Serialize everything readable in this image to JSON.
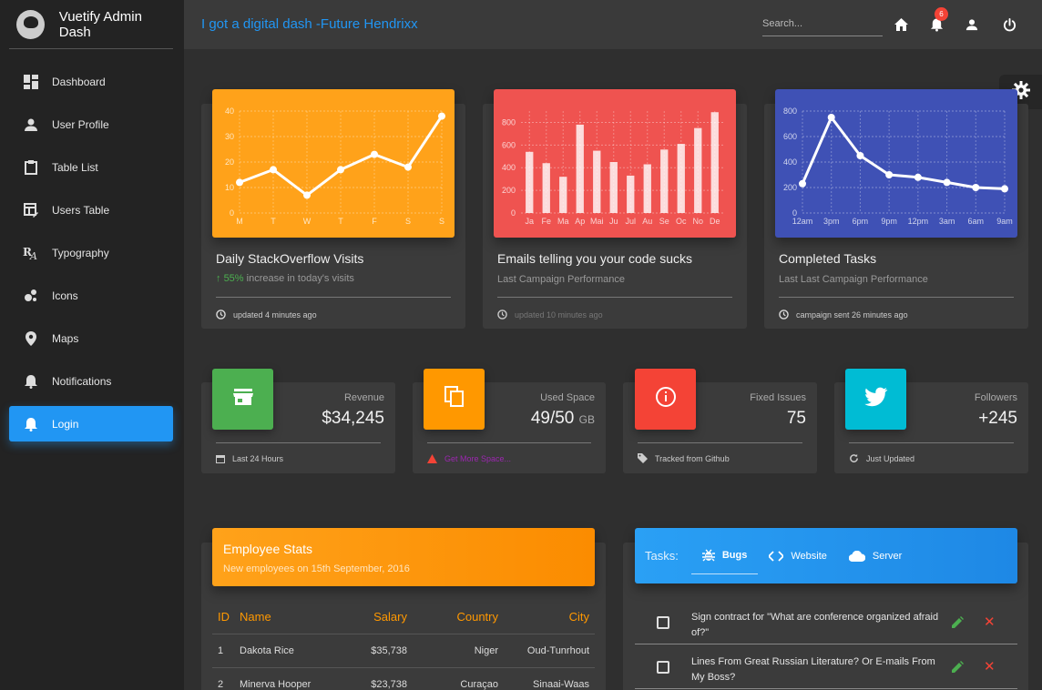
{
  "brand": {
    "title": "Vuetify Admin Dash"
  },
  "nav": [
    {
      "label": "Dashboard",
      "icon": "dashboard-icon"
    },
    {
      "label": "User Profile",
      "icon": "person-icon"
    },
    {
      "label": "Table List",
      "icon": "clipboard-icon"
    },
    {
      "label": "Users Table",
      "icon": "table-edit-icon"
    },
    {
      "label": "Typography",
      "icon": "typography-icon"
    },
    {
      "label": "Icons",
      "icon": "bubble-chart-icon"
    },
    {
      "label": "Maps",
      "icon": "map-marker-icon"
    },
    {
      "label": "Notifications",
      "icon": "bell-icon"
    },
    {
      "label": "Login",
      "icon": "bell-icon",
      "active": true
    }
  ],
  "topbar": {
    "tagline": "I got a digital dash -Future Hendrixx",
    "search_placeholder": "Search...",
    "notification_count": "6"
  },
  "chart_cards": [
    {
      "title": "Daily StackOverflow Visits",
      "subtitle_pct": "55%",
      "subtitle_text": "increase in today's visits",
      "footer": "updated 4 minutes ago",
      "color": "#ffa21a"
    },
    {
      "title": "Emails telling you your code sucks",
      "subtitle_text": "Last Campaign Performance",
      "footer": "updated 10 minutes ago",
      "color": "#ef5350"
    },
    {
      "title": "Completed Tasks",
      "subtitle_text": "Last Last Campaign Performance",
      "footer": "campaign sent 26 minutes ago",
      "color": "#3f51b5"
    }
  ],
  "chart_data": [
    {
      "type": "line",
      "categories": [
        "M",
        "T",
        "W",
        "T",
        "F",
        "S",
        "S"
      ],
      "values": [
        12,
        17,
        7,
        17,
        23,
        18,
        38
      ],
      "yticks": [
        0,
        10,
        20,
        30,
        40
      ],
      "ylim": [
        0,
        40
      ],
      "grid": true
    },
    {
      "type": "bar",
      "categories": [
        "Ja",
        "Fe",
        "Ma",
        "Ap",
        "Mai",
        "Ju",
        "Jul",
        "Au",
        "Se",
        "Oc",
        "No",
        "De"
      ],
      "values": [
        540,
        440,
        320,
        780,
        550,
        450,
        330,
        430,
        560,
        610,
        750,
        890
      ],
      "yticks": [
        0,
        200,
        400,
        600,
        800
      ],
      "ylim": [
        0,
        900
      ],
      "grid": true
    },
    {
      "type": "line",
      "categories": [
        "12am",
        "3pm",
        "6pm",
        "9pm",
        "12pm",
        "3am",
        "6am",
        "9am"
      ],
      "values": [
        230,
        750,
        450,
        300,
        280,
        240,
        200,
        190
      ],
      "yticks": [
        0,
        200,
        400,
        600,
        800
      ],
      "ylim": [
        0,
        800
      ],
      "grid": true
    }
  ],
  "stats": [
    {
      "label": "Revenue",
      "value": "$34,245",
      "unit": "",
      "footer": "Last 24 Hours",
      "color": "#4caf50",
      "icon": "store-icon"
    },
    {
      "label": "Used Space",
      "value": "49/50",
      "unit": "GB",
      "footer": "Get More Space...",
      "color": "#ff9800",
      "icon": "copy-icon"
    },
    {
      "label": "Fixed Issues",
      "value": "75",
      "unit": "",
      "footer": "Tracked from Github",
      "color": "#f44336",
      "icon": "info-icon"
    },
    {
      "label": "Followers",
      "value": "+245",
      "unit": "",
      "footer": "Just Updated",
      "color": "#00bcd4",
      "icon": "twitter-icon"
    }
  ],
  "employees": {
    "title": "Employee Stats",
    "subtitle": "New employees on 15th September, 2016",
    "columns": [
      "ID",
      "Name",
      "Salary",
      "Country",
      "City"
    ],
    "rows": [
      [
        "1",
        "Dakota Rice",
        "$35,738",
        "Niger",
        "Oud-Tunrhout"
      ],
      [
        "2",
        "Minerva Hooper",
        "$23,738",
        "Curaçao",
        "Sinaai-Waas"
      ]
    ]
  },
  "tasks": {
    "label": "Tasks:",
    "tabs": [
      "Bugs",
      "Website",
      "Server"
    ],
    "items": [
      "Sign contract for \"What are conference organized afraid of?\"",
      "Lines From Great Russian Literature? Or E-mails From My Boss?"
    ]
  }
}
